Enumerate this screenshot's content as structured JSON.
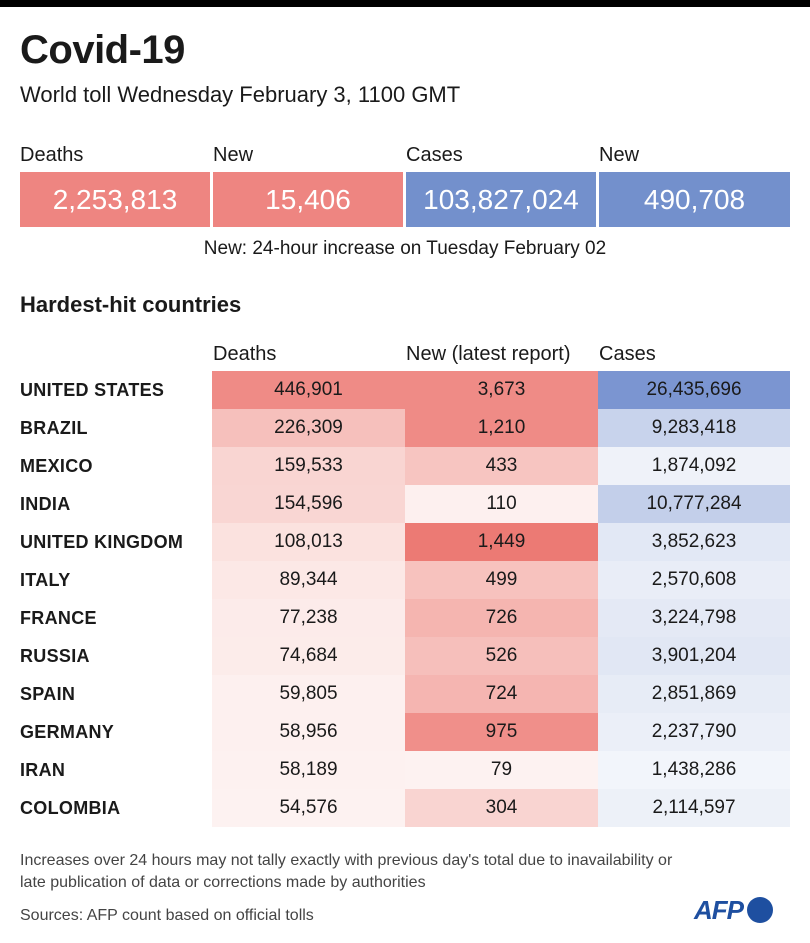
{
  "title": "Covid-19",
  "subtitle": "World toll Wednesday February 3, 1100 GMT",
  "totals": {
    "headers": [
      "Deaths",
      "New",
      "Cases",
      "New"
    ],
    "values": [
      "2,253,813",
      "15,406",
      "103,827,024",
      "490,708"
    ],
    "colors": [
      "#ee8581",
      "#ee8581",
      "#7390cc",
      "#7390cc"
    ]
  },
  "note": "New: 24-hour increase on Tuesday February 02",
  "section_title": "Hardest-hit countries",
  "columns": [
    "Deaths",
    "New (latest report)",
    "Cases"
  ],
  "rows": [
    {
      "country": "UNITED STATES",
      "deaths": "446,901",
      "new": "3,673",
      "cases": "26,435,696",
      "deaths_bg": "#ef8b86",
      "new_bg": "#ef8b86",
      "cases_bg": "#7b95d1"
    },
    {
      "country": "BRAZIL",
      "deaths": "226,309",
      "new": "1,210",
      "cases": "9,283,418",
      "deaths_bg": "#f6c0bc",
      "new_bg": "#ef8b86",
      "cases_bg": "#c8d3ec"
    },
    {
      "country": "MEXICO",
      "deaths": "159,533",
      "new": "433",
      "cases": "1,874,092",
      "deaths_bg": "#f9d5d2",
      "new_bg": "#f7c5c1",
      "cases_bg": "#eff2f9"
    },
    {
      "country": "INDIA",
      "deaths": "154,596",
      "new": "110",
      "cases": "10,777,284",
      "deaths_bg": "#f9d6d3",
      "new_bg": "#fdf0ef",
      "cases_bg": "#c3cfea"
    },
    {
      "country": "UNITED KINGDOM",
      "deaths": "108,013",
      "new": "1,449",
      "cases": "3,852,623",
      "deaths_bg": "#fbe2df",
      "new_bg": "#ec7a74",
      "cases_bg": "#e2e8f5"
    },
    {
      "country": "ITALY",
      "deaths": "89,344",
      "new": "499",
      "cases": "2,570,608",
      "deaths_bg": "#fce8e6",
      "new_bg": "#f7c2be",
      "cases_bg": "#e9edf7"
    },
    {
      "country": "FRANCE",
      "deaths": "77,238",
      "new": "726",
      "cases": "3,224,798",
      "deaths_bg": "#fcebea",
      "new_bg": "#f5b5b0",
      "cases_bg": "#e4e9f5"
    },
    {
      "country": "RUSSIA",
      "deaths": "74,684",
      "new": "526",
      "cases": "3,901,204",
      "deaths_bg": "#fcecea",
      "new_bg": "#f6bfbb",
      "cases_bg": "#e1e7f4"
    },
    {
      "country": "SPAIN",
      "deaths": "59,805",
      "new": "724",
      "cases": "2,851,869",
      "deaths_bg": "#fdf0ef",
      "new_bg": "#f5b5b1",
      "cases_bg": "#e7ecf6"
    },
    {
      "country": "GERMANY",
      "deaths": "58,956",
      "new": "975",
      "cases": "2,237,790",
      "deaths_bg": "#fdf0ef",
      "new_bg": "#f08f8a",
      "cases_bg": "#ebeff8"
    },
    {
      "country": "IRAN",
      "deaths": "58,189",
      "new": "79",
      "cases": "1,438,286",
      "deaths_bg": "#fdf1f0",
      "new_bg": "#fdf2f1",
      "cases_bg": "#f2f5fb"
    },
    {
      "country": "COLOMBIA",
      "deaths": "54,576",
      "new": "304",
      "cases": "2,114,597",
      "deaths_bg": "#fdf2f1",
      "new_bg": "#f9d4d1",
      "cases_bg": "#edf1f8"
    }
  ],
  "footnote": "Increases over 24 hours may not tally exactly with previous day's total due to inavailability or late publication of data or corrections made by authorities",
  "sources": "Sources: AFP count based on official tolls",
  "logo": "AFP"
}
